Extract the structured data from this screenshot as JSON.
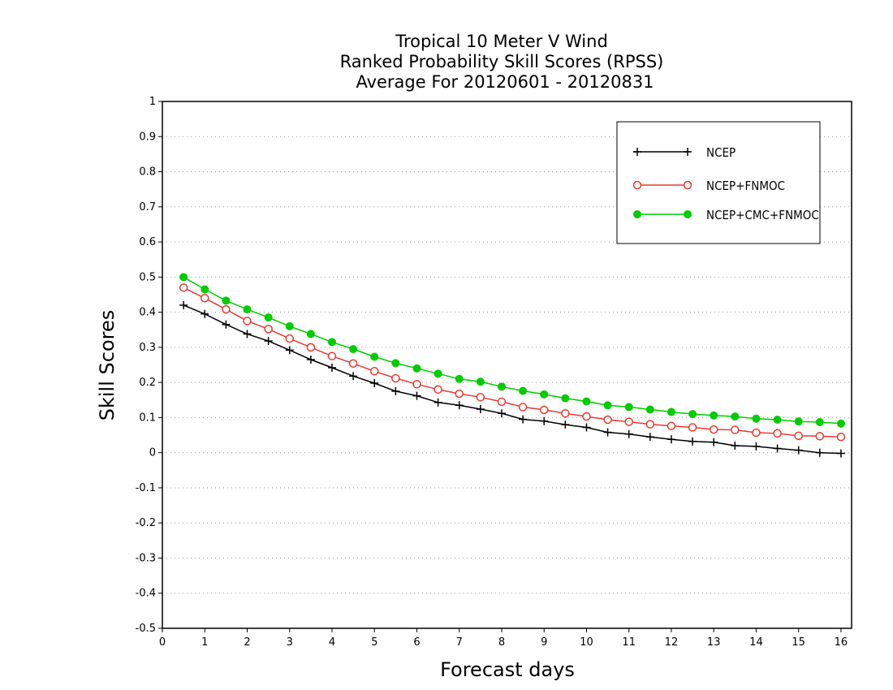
{
  "chart_data": {
    "type": "line",
    "title_lines": [
      "Tropical 10 Meter V Wind",
      "Ranked Probability Skill Scores (RPSS)",
      "Average For 20120601 - 20120831"
    ],
    "xlabel": "Forecast days",
    "ylabel": "Skill Scores",
    "xlim": [
      0,
      16.25
    ],
    "ylim": [
      -0.5,
      1
    ],
    "xticks": [
      "0",
      "1",
      "2",
      "3",
      "4",
      "5",
      "6",
      "7",
      "8",
      "9",
      "10",
      "11",
      "12",
      "13",
      "14",
      "15",
      "16"
    ],
    "yticks": [
      "1",
      "0.9",
      "0.8",
      "0.7",
      "0.6",
      "0.5",
      "0.4",
      "0.3",
      "0.2",
      "0.1",
      "0",
      "-0.1",
      "-0.2",
      "-0.3",
      "-0.4",
      "-0.5"
    ],
    "grid": "horizontal dotted",
    "legend_position": "top-right",
    "x": [
      0.5,
      1,
      1.5,
      2,
      2.5,
      3,
      3.5,
      4,
      4.5,
      5,
      5.5,
      6,
      6.5,
      7,
      7.5,
      8,
      8.5,
      9,
      9.5,
      10,
      10.5,
      11,
      11.5,
      12,
      12.5,
      13,
      13.5,
      14,
      14.5,
      15,
      15.5,
      16
    ],
    "series": [
      {
        "name": "NCEP",
        "color": "#000000",
        "marker": "plus",
        "values": [
          0.42,
          0.395,
          0.365,
          0.338,
          0.318,
          0.292,
          0.265,
          0.242,
          0.218,
          0.198,
          0.175,
          0.162,
          0.143,
          0.135,
          0.124,
          0.112,
          0.095,
          0.09,
          0.08,
          0.072,
          0.058,
          0.053,
          0.045,
          0.038,
          0.032,
          0.03,
          0.02,
          0.018,
          0.012,
          0.007,
          0.0,
          -0.002
        ]
      },
      {
        "name": "NCEP+FNMOC",
        "color": "#e8392f",
        "marker": "open-circle",
        "values": [
          0.47,
          0.44,
          0.408,
          0.375,
          0.352,
          0.325,
          0.3,
          0.275,
          0.254,
          0.232,
          0.212,
          0.195,
          0.18,
          0.168,
          0.158,
          0.145,
          0.13,
          0.122,
          0.112,
          0.103,
          0.094,
          0.088,
          0.081,
          0.076,
          0.072,
          0.066,
          0.065,
          0.057,
          0.055,
          0.048,
          0.047,
          0.045
        ]
      },
      {
        "name": "NCEP+CMC+FNMOC",
        "color": "#00cc00",
        "marker": "filled-circle",
        "values": [
          0.5,
          0.465,
          0.433,
          0.408,
          0.385,
          0.36,
          0.338,
          0.315,
          0.295,
          0.273,
          0.255,
          0.24,
          0.225,
          0.21,
          0.202,
          0.188,
          0.176,
          0.166,
          0.155,
          0.146,
          0.135,
          0.13,
          0.123,
          0.116,
          0.11,
          0.106,
          0.103,
          0.097,
          0.094,
          0.089,
          0.087,
          0.083
        ]
      }
    ]
  }
}
